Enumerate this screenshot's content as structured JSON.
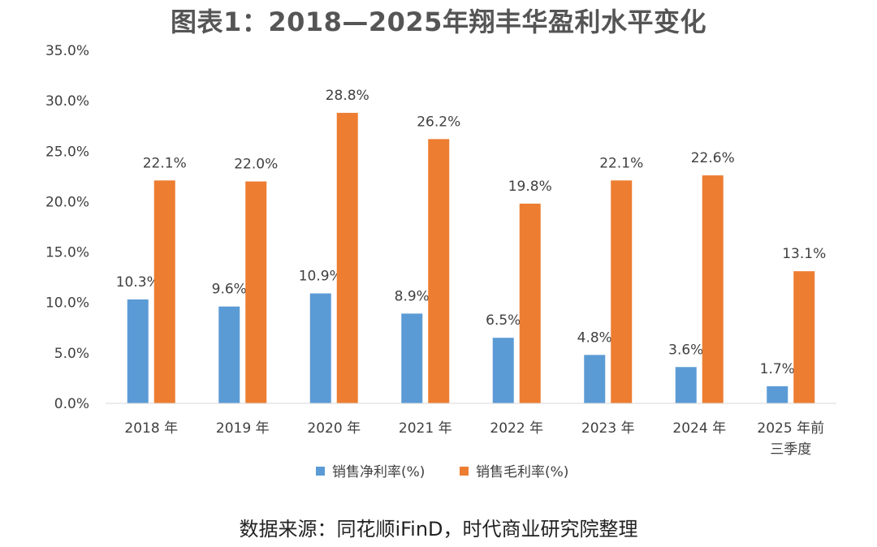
{
  "title": "图表1：2018—2025年翔丰华盈利水平变化",
  "source": "数据来源：同花顺iFinD，时代商业研究院整理",
  "chart_data": {
    "type": "bar",
    "categories": [
      [
        "2018 年"
      ],
      [
        "2019 年"
      ],
      [
        "2020 年"
      ],
      [
        "2021 年"
      ],
      [
        "2022 年"
      ],
      [
        "2023 年"
      ],
      [
        "2024 年"
      ],
      [
        "2025 年前",
        "三季度"
      ]
    ],
    "series": [
      {
        "name": "销售净利率(%)",
        "color": "#5B9BD5",
        "values": [
          10.3,
          9.6,
          10.9,
          8.9,
          6.5,
          4.8,
          3.6,
          1.7
        ],
        "labels": [
          "10.3%",
          "9.6%",
          "10.9%",
          "8.9%",
          "6.5%",
          "4.8%",
          "3.6%",
          "1.7%"
        ]
      },
      {
        "name": "销售毛利率(%)",
        "color": "#ED7D31",
        "values": [
          22.1,
          22.0,
          28.8,
          26.2,
          19.8,
          22.1,
          22.6,
          13.1
        ],
        "labels": [
          "22.1%",
          "22.0%",
          "28.8%",
          "26.2%",
          "19.8%",
          "22.1%",
          "22.6%",
          "13.1%"
        ]
      }
    ],
    "ylim": [
      0,
      35
    ],
    "yticks": [
      0,
      5,
      10,
      15,
      20,
      25,
      30,
      35
    ],
    "ytick_labels": [
      "0.0%",
      "5.0%",
      "10.0%",
      "15.0%",
      "20.0%",
      "25.0%",
      "30.0%",
      "35.0%"
    ],
    "grid": false,
    "legend": "bottom"
  }
}
